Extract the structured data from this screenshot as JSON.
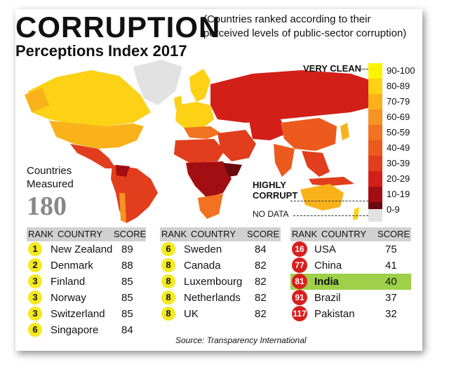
{
  "title": "CORRUPTION",
  "subtitle": "Perceptions Index 2017",
  "note": "(Countries ranked according to their perceived levels of public-sector corruption)",
  "legend": [
    {
      "label": "90-100",
      "color": "#fff200"
    },
    {
      "label": "80-89",
      "color": "#fcd116"
    },
    {
      "label": "70-79",
      "color": "#f9b21a"
    },
    {
      "label": "60-69",
      "color": "#f59323"
    },
    {
      "label": "50-59",
      "color": "#f17221"
    },
    {
      "label": "40-49",
      "color": "#ec5a1e"
    },
    {
      "label": "30-39",
      "color": "#e23d1c"
    },
    {
      "label": "20-29",
      "color": "#d22018"
    },
    {
      "label": "10-19",
      "color": "#a30e13"
    },
    {
      "label": "0-9",
      "color": "#6a0a0e"
    }
  ],
  "very_clean": "VERY CLEAN",
  "highly_corrupt": "HIGHLY CORRUPT",
  "no_data": "NO DATA",
  "measured_label": "Countries Measured",
  "measured_count": "180",
  "headers": {
    "rank": "RANK",
    "country": "COUNTRY",
    "score": "SCORE"
  },
  "tables": [
    [
      {
        "rank": "1",
        "country": "New Zealand",
        "score": "89"
      },
      {
        "rank": "2",
        "country": "Denmark",
        "score": "88"
      },
      {
        "rank": "3",
        "country": "Finland",
        "score": "85"
      },
      {
        "rank": "3",
        "country": "Norway",
        "score": "85"
      },
      {
        "rank": "3",
        "country": "Switzerland",
        "score": "85"
      },
      {
        "rank": "6",
        "country": "Singapore",
        "score": "84"
      }
    ],
    [
      {
        "rank": "6",
        "country": "Sweden",
        "score": "84"
      },
      {
        "rank": "8",
        "country": "Canada",
        "score": "82"
      },
      {
        "rank": "8",
        "country": "Luxembourg",
        "score": "82"
      },
      {
        "rank": "8",
        "country": "Netherlands",
        "score": "82"
      },
      {
        "rank": "8",
        "country": "UK",
        "score": "82"
      }
    ],
    [
      {
        "rank": "16",
        "country": "USA",
        "score": "75"
      },
      {
        "rank": "77",
        "country": "China",
        "score": "41"
      },
      {
        "rank": "81",
        "country": "India",
        "score": "40"
      },
      {
        "rank": "91",
        "country": "Brazil",
        "score": "37"
      },
      {
        "rank": "117",
        "country": "Pakistan",
        "score": "32"
      }
    ]
  ],
  "source": "Source: Transparency International"
}
